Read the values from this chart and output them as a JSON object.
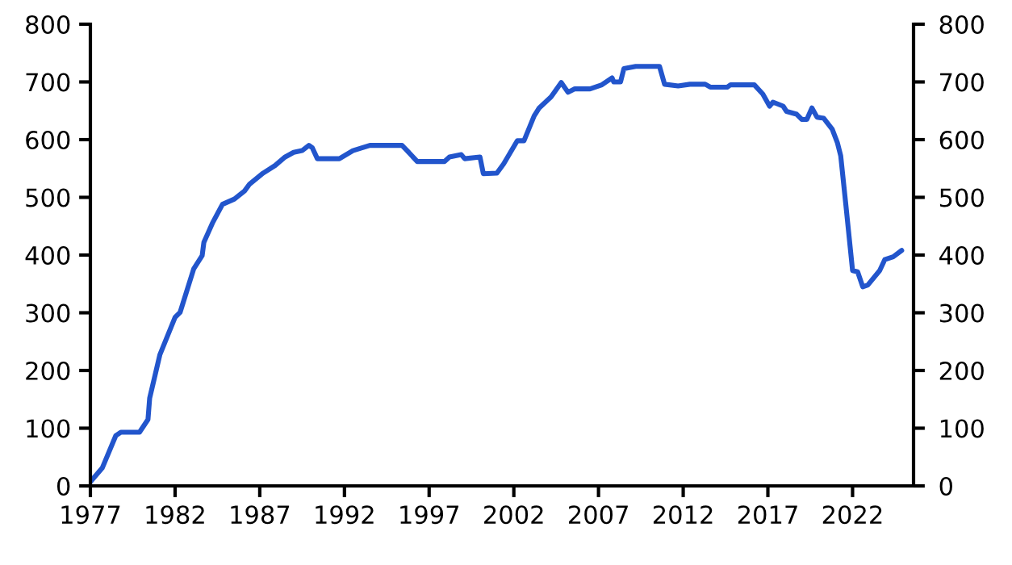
{
  "chart_data": {
    "type": "line",
    "xlim": [
      1977,
      2025.6
    ],
    "xticks": [
      1977,
      1982,
      1987,
      1992,
      1997,
      2002,
      2007,
      2012,
      2017,
      2022
    ],
    "ylim": [
      0,
      800
    ],
    "yticks": [
      0,
      100,
      200,
      300,
      400,
      500,
      600,
      700,
      800
    ],
    "y2lim": [
      0,
      800
    ],
    "y2ticks": [
      0,
      100,
      200,
      300,
      400,
      500,
      600,
      700,
      800
    ],
    "grid": false,
    "legend": false,
    "series": [
      {
        "color": "#2255cc",
        "x": [
          1977.0,
          1977.7,
          1978.5,
          1978.8,
          1979.9,
          1980.4,
          1980.5,
          1981.1,
          1982.0,
          1982.3,
          1983.1,
          1983.6,
          1983.7,
          1984.2,
          1984.8,
          1985.5,
          1986.1,
          1986.4,
          1987.2,
          1987.9,
          1988.5,
          1989.0,
          1989.5,
          1989.9,
          1990.1,
          1990.4,
          1991.7,
          1992.5,
          1993.5,
          1995.4,
          1995.7,
          1996.3,
          1997.9,
          1998.2,
          1998.9,
          1999.1,
          2000.0,
          2000.2,
          2001.0,
          2001.4,
          2002.2,
          2002.6,
          2003.2,
          2003.5,
          2004.2,
          2004.8,
          2005.2,
          2005.6,
          2006.5,
          2007.2,
          2007.8,
          2007.9,
          2008.3,
          2008.5,
          2009.2,
          2010.6,
          2010.9,
          2011.7,
          2012.4,
          2013.3,
          2013.6,
          2014.6,
          2014.8,
          2016.2,
          2016.7,
          2017.1,
          2017.3,
          2017.9,
          2018.1,
          2018.7,
          2019.0,
          2019.3,
          2019.6,
          2019.9,
          2020.3,
          2020.8,
          2021.1,
          2021.3,
          2021.6,
          2022.0,
          2022.3,
          2022.6,
          2022.9,
          2023.6,
          2023.9,
          2024.4,
          2024.9
        ],
        "values": [
          7,
          31,
          87,
          93,
          93,
          115,
          152,
          227,
          292,
          301,
          376,
          399,
          422,
          455,
          488,
          497,
          511,
          523,
          542,
          555,
          570,
          578,
          581,
          590,
          586,
          567,
          567,
          581,
          590,
          590,
          581,
          562,
          562,
          570,
          574,
          567,
          570,
          541,
          542,
          558,
          598,
          598,
          641,
          655,
          674,
          699,
          682,
          688,
          688,
          695,
          707,
          700,
          700,
          723,
          727,
          727,
          696,
          693,
          696,
          696,
          691,
          691,
          695,
          695,
          679,
          658,
          665,
          658,
          649,
          644,
          635,
          635,
          655,
          639,
          637,
          618,
          595,
          572,
          488,
          373,
          371,
          345,
          348,
          373,
          392,
          397,
          408
        ]
      }
    ]
  }
}
